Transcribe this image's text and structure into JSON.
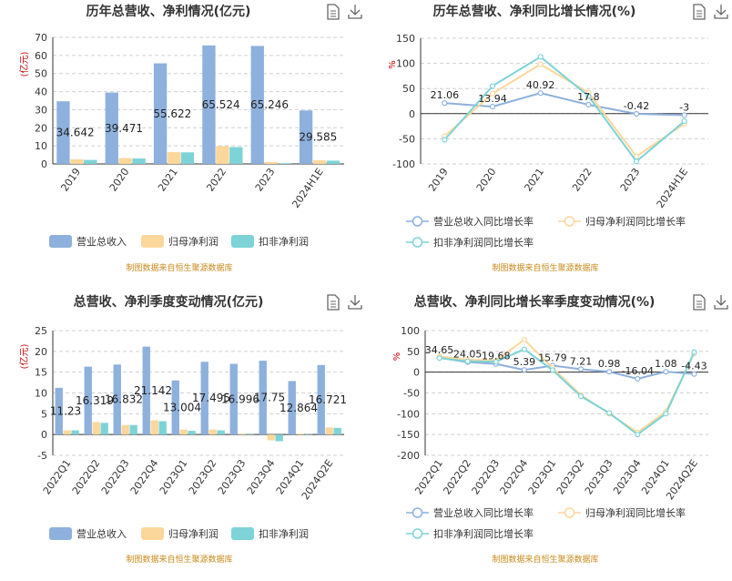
{
  "charts": [
    {
      "title": "历年总营收、净利情况(亿元)",
      "source": "制图数据来自恒生聚源数据库",
      "tools": [
        "data-view-icon",
        "download-icon"
      ]
    },
    {
      "title": "历年总营收、净利同比增长情况(%)",
      "source": "制图数据来自恒生聚源数据库",
      "tools": [
        "data-view-icon",
        "download-icon"
      ]
    },
    {
      "title": "总营收、净利季度变动情况(亿元)",
      "source": "制图数据来自恒生聚源数据库",
      "tools": [
        "data-view-icon",
        "download-icon"
      ]
    },
    {
      "title": "总营收、净利同比增长率季度变动情况(%)",
      "source": "制图数据来自恒生聚源数据库",
      "tools": [
        "data-view-icon",
        "download-icon"
      ]
    }
  ],
  "chart_data": [
    {
      "type": "bar",
      "title": "历年总营收、净利情况(亿元)",
      "ylabel": "(亿元)",
      "ylim": [
        0,
        70
      ],
      "yticks": [
        0,
        10,
        20,
        30,
        40,
        50,
        60,
        70
      ],
      "categories": [
        "2019",
        "2020",
        "2021",
        "2022",
        "2023",
        "2024H1E"
      ],
      "series": [
        {
          "name": "营业总收入",
          "color": "#8eb0dd",
          "values": [
            34.642,
            39.471,
            55.622,
            65.524,
            65.246,
            29.585
          ]
        },
        {
          "name": "归母净利润",
          "color": "#fbd79c",
          "values": [
            2.5,
            3.2,
            6.5,
            9.9,
            1.1,
            2.0
          ]
        },
        {
          "name": "扣非净利润",
          "color": "#7dd3d6",
          "values": [
            2.2,
            3.0,
            6.4,
            9.3,
            0.4,
            1.8
          ]
        }
      ],
      "data_labels": [
        "34.642",
        "39.471",
        "55.622",
        "65.524",
        "65.246",
        "29.585"
      ],
      "legend": "bottom",
      "grid": true
    },
    {
      "type": "line",
      "title": "历年总营收、净利同比增长情况(%)",
      "ylabel": "%",
      "ylim": [
        -100,
        150
      ],
      "yticks": [
        -100,
        -50,
        0,
        50,
        100,
        150
      ],
      "categories": [
        "2019",
        "2020",
        "2021",
        "2022",
        "2023",
        "2024H1E"
      ],
      "series": [
        {
          "name": "营业总收入同比增长率",
          "color": "#8eb0dd",
          "values": [
            21.06,
            13.94,
            40.92,
            17.8,
            -0.42,
            -3
          ]
        },
        {
          "name": "归母净利润同比增长率",
          "color": "#fbd79c",
          "values": [
            -45,
            40,
            98,
            42,
            -85,
            -20
          ]
        },
        {
          "name": "扣非净利润同比增长率",
          "color": "#7dd3d6",
          "values": [
            -52,
            55,
            113,
            35,
            -95,
            -15
          ]
        }
      ],
      "data_labels": [
        "21.06",
        "13.94",
        "40.92",
        "17.8",
        "-0.42",
        "-3"
      ],
      "legend": "bottom",
      "grid": true
    },
    {
      "type": "bar",
      "title": "总营收、净利季度变动情况(亿元)",
      "ylabel": "(亿元)",
      "ylim": [
        -5,
        25
      ],
      "yticks": [
        -5,
        0,
        5,
        10,
        15,
        20,
        25
      ],
      "categories": [
        "2022Q1",
        "2022Q2",
        "2022Q3",
        "2022Q4",
        "2023Q1",
        "2023Q2",
        "2023Q3",
        "2023Q4",
        "2024Q1",
        "2024Q2E"
      ],
      "series": [
        {
          "name": "营业总收入",
          "color": "#8eb0dd",
          "values": [
            11.23,
            16.319,
            16.832,
            21.142,
            13.004,
            17.495,
            16.996,
            17.75,
            12.864,
            16.721
          ]
        },
        {
          "name": "归母净利润",
          "color": "#fbd79c",
          "values": [
            1.0,
            3.0,
            2.3,
            3.4,
            1.2,
            1.2,
            0.2,
            -1.4,
            0.2,
            1.7
          ]
        },
        {
          "name": "扣非净利润",
          "color": "#7dd3d6",
          "values": [
            1.0,
            2.8,
            2.3,
            3.2,
            0.9,
            1.0,
            0.1,
            -1.6,
            0.1,
            1.6
          ]
        }
      ],
      "data_labels": [
        "11.23",
        "16.319",
        "16.832",
        "21.142",
        "13.004",
        "17.495",
        "16.996",
        "17.75",
        "12.864",
        "16.721"
      ],
      "legend": "bottom",
      "grid": true
    },
    {
      "type": "line",
      "title": "总营收、净利同比增长率季度变动情况(%)",
      "ylabel": "%",
      "ylim": [
        -200,
        100
      ],
      "yticks": [
        -200,
        -150,
        -100,
        -50,
        0,
        50,
        100
      ],
      "categories": [
        "2022Q1",
        "2022Q2",
        "2022Q3",
        "2022Q4",
        "2023Q1",
        "2023Q2",
        "2023Q3",
        "2023Q4",
        "2024Q1",
        "2024Q2E"
      ],
      "series": [
        {
          "name": "营业总收入同比增长率",
          "color": "#8eb0dd",
          "values": [
            34.65,
            24.05,
            19.68,
            5.39,
            15.79,
            7.21,
            0.98,
            -16.04,
            1.08,
            -4.43
          ]
        },
        {
          "name": "归母净利润同比增长率",
          "color": "#fbd79c",
          "values": [
            38,
            30,
            28,
            78,
            10,
            -55,
            -100,
            -145,
            -95,
            45
          ]
        },
        {
          "name": "扣非净利润同比增长率",
          "color": "#7dd3d6",
          "values": [
            34,
            26,
            25,
            55,
            5,
            -58,
            -98,
            -150,
            -100,
            48
          ]
        }
      ],
      "data_labels": [
        "34.65",
        "24.05",
        "19.68",
        "5.39",
        "15.79",
        "7.21",
        "0.98",
        "-16.04",
        "1.08",
        "-4.43"
      ],
      "legend": "bottom",
      "grid": true
    }
  ]
}
